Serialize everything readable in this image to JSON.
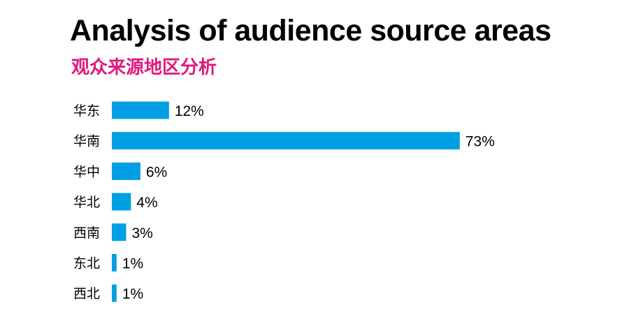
{
  "chart_data": {
    "type": "bar",
    "orientation": "horizontal",
    "title": "Analysis of audience source areas",
    "subtitle": "观众来源地区分析",
    "categories": [
      "华东",
      "华南",
      "华中",
      "华北",
      "西南",
      "东北",
      "西北"
    ],
    "values": [
      12,
      73,
      6,
      4,
      3,
      1,
      1
    ],
    "value_labels": [
      "12%",
      "73%",
      "6%",
      "4%",
      "3%",
      "1%",
      "1%"
    ],
    "unit": "%",
    "xlabel": "",
    "ylabel": "",
    "grid": false,
    "legend": "none",
    "colors": {
      "bar": "#009fe3",
      "title": "#000000",
      "subtitle": "#e0197d"
    }
  }
}
